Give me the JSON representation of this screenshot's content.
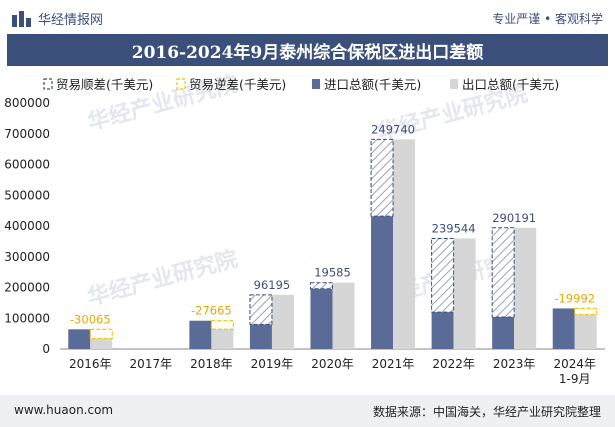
{
  "header": {
    "brand": "华经情报网",
    "tagline": "专业严谨 • 客观科学"
  },
  "title": "2016-2024年9月泰州综合保税区进出口差额",
  "footer": {
    "website": "www.huaon.com",
    "source": "数据来源：中国海关，华经产业研究院整理"
  },
  "watermark": "华经产业研究院",
  "colors": {
    "header_bg": "#3a4f7a",
    "import": "#5a6b98",
    "export": "#d6d6d6",
    "surplus": "#3a4f7a",
    "deficit": "#f5c400"
  },
  "chart_data": {
    "type": "bar",
    "categories": [
      "2016年",
      "2017年",
      "2018年",
      "2019年",
      "2020年",
      "2021年",
      "2022年",
      "2023年",
      "2024年\n1-9月"
    ],
    "series": [
      {
        "name": "进口总额(千美元)",
        "values": [
          64000,
          0,
          92000,
          80000,
          196000,
          432000,
          120000,
          104000,
          132000
        ]
      },
      {
        "name": "出口总额(千美元)",
        "values": [
          33935,
          0,
          64335,
          176195,
          215585,
          681740,
          359544,
          394191,
          112008
        ]
      }
    ],
    "balance": {
      "surplus_name": "贸易顺差(千美元)",
      "deficit_name": "贸易逆差(千美元)",
      "labels": [
        "-30065",
        "",
        "-27665",
        "96195",
        "19585",
        "249740",
        "239544",
        "290191",
        "-19992"
      ],
      "values": [
        -30065,
        null,
        -27665,
        96195,
        19585,
        249740,
        239544,
        290191,
        -19992
      ]
    },
    "ylim": [
      0,
      800000
    ],
    "yticks": [
      0,
      100000,
      200000,
      300000,
      400000,
      500000,
      600000,
      700000,
      800000
    ],
    "legend": "top"
  }
}
